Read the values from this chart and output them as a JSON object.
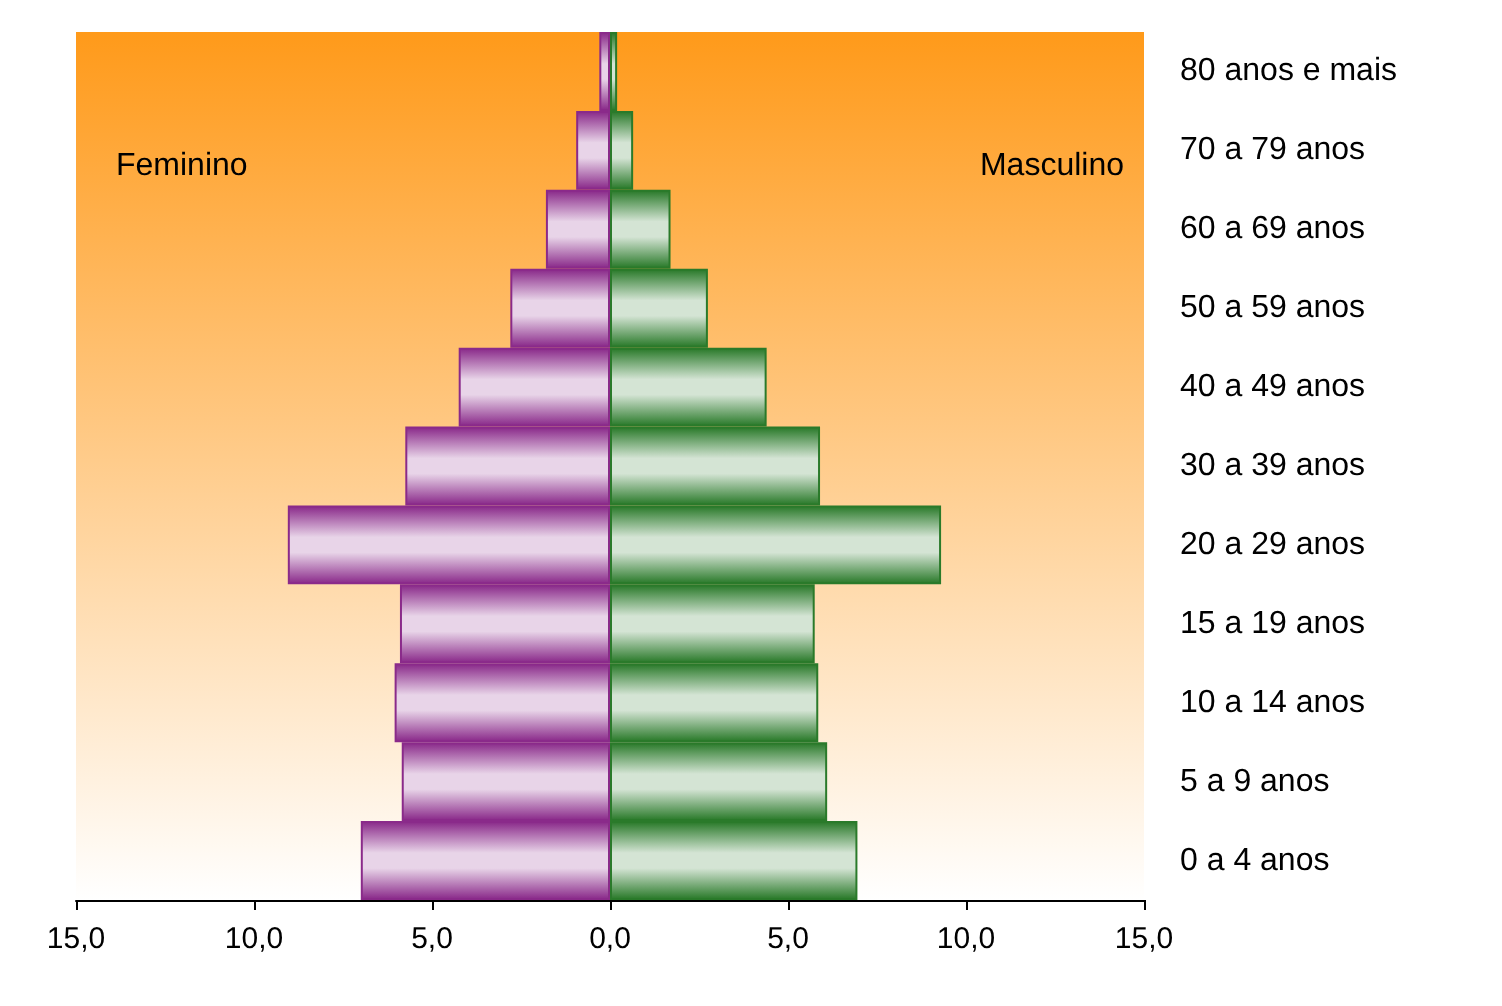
{
  "chart_data": {
    "type": "bar",
    "orientation": "horizontal",
    "categories": [
      "80 anos e mais",
      "70 a 79 anos",
      "60 a 69 anos",
      "50 a 59 anos",
      "40 a 49 anos",
      "30 a 39 anos",
      "20 a 29 anos",
      "15 a 19 anos",
      "10 a 14 anos",
      "5 a 9 anos",
      "0 a 4 anos"
    ],
    "series": [
      {
        "color": "#8a2a8a",
        "values": [
          -0.3,
          -0.95,
          -1.8,
          -2.8,
          -4.25,
          -5.75,
          -9.05,
          -5.9,
          -6.05,
          -5.85,
          -7.0
        ]
      },
      {
        "color": "#2a7a2a",
        "values": [
          0.2,
          0.65,
          1.7,
          2.75,
          4.4,
          5.9,
          9.3,
          5.75,
          5.85,
          6.1,
          6.95
        ]
      }
    ],
    "xlim": [
      -15,
      15
    ],
    "xticks": [
      {
        "value": -15,
        "label": "15,0"
      },
      {
        "value": -10,
        "label": "10,0"
      },
      {
        "value": -5,
        "label": "5,0"
      },
      {
        "value": 0,
        "label": "0,0"
      },
      {
        "value": 5,
        "label": "5,0"
      },
      {
        "value": 10,
        "label": "10,0"
      },
      {
        "value": 15,
        "label": "15,0"
      }
    ],
    "stacked": true,
    "annotations": [
      "Feminino",
      "Masculino"
    ],
    "grid": false
  }
}
